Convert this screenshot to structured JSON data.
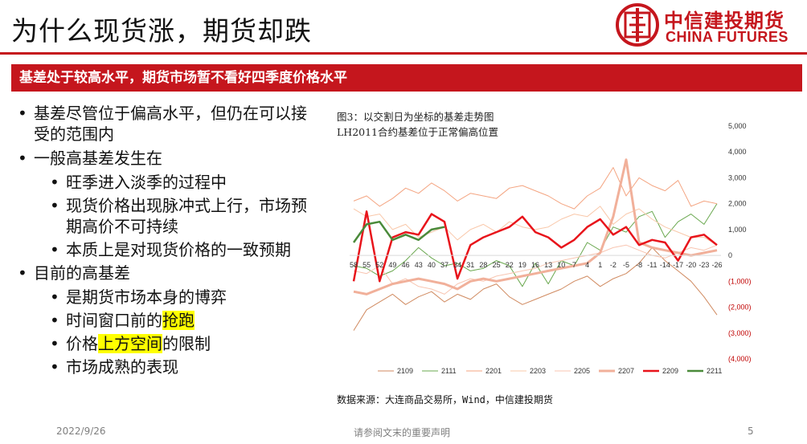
{
  "slide": {
    "title": "为什么现货涨，期货却跌",
    "banner": "基差处于较高水平，期货市场暂不看好四季度价格水平"
  },
  "logo": {
    "cn": "中信建投期货",
    "en": "CHINA FUTURES"
  },
  "bullets": {
    "b1": "基差尽管位于偏高水平，但仍在可以接受的范围内",
    "b2": "一般高基差发生在",
    "b2_1": "旺季进入淡季的过程中",
    "b2_2": "现货价格出现脉冲式上行，市场预期高价不可持续",
    "b2_3": "本质上是对现货价格的一致预期",
    "b3": "目前的高基差",
    "b3_1": "是期货市场本身的博弈",
    "b3_2_pre": "时间窗口前的",
    "b3_2_hl": "抢跑",
    "b3_3_pre": "价格",
    "b3_3_hl": "上方空间",
    "b3_3_post": "的限制",
    "b3_4": "市场成熟的表现"
  },
  "chart_caption": {
    "line1": "图3：以交割日为坐标的基差走势图",
    "line2": "LH2011合约基差位于正常偏高位置"
  },
  "source": "数据来源：大连商品交易所，Wind，中信建投期货",
  "footer": {
    "date": "2022/9/26",
    "note": "请参阅文末的重要声明",
    "page": "5"
  },
  "chart_data": {
    "type": "line",
    "x": [
      58,
      55,
      52,
      49,
      46,
      43,
      40,
      37,
      34,
      31,
      28,
      25,
      22,
      19,
      16,
      13,
      10,
      7,
      4,
      1,
      -2,
      -5,
      -8,
      -11,
      -14,
      -17,
      -20,
      -23,
      -26
    ],
    "y_ticks": [
      "5,000",
      "4,000",
      "3,000",
      "2,000",
      "1,000",
      "0",
      "(1,000)",
      "(2,000)",
      "(3,000)",
      "(4,000)"
    ],
    "y_tick_values": [
      5000,
      4000,
      3000,
      2000,
      1000,
      0,
      -1000,
      -2000,
      -3000,
      -4000
    ],
    "ylim": [
      -4000,
      5000
    ],
    "grid": false,
    "legend_position": "bottom",
    "series": [
      {
        "name": "2109",
        "color": "#d08a60",
        "width": 1,
        "values": [
          -2900,
          -2100,
          -1800,
          -1500,
          -1900,
          -1600,
          -1400,
          -1800,
          -1500,
          -1700,
          -1300,
          -1100,
          -1600,
          -1900,
          -1700,
          -1500,
          -1300,
          -1000,
          -800,
          -1200,
          -900,
          -700,
          -300,
          300,
          -200,
          -600,
          -1000,
          -1600,
          -2300
        ]
      },
      {
        "name": "2111",
        "color": "#6aa84f",
        "width": 1,
        "values": [
          -400,
          -500,
          -800,
          -600,
          -200,
          300,
          -100,
          -400,
          -300,
          -600,
          -500,
          -200,
          -400,
          -1200,
          -300,
          -1100,
          -200,
          -400,
          500,
          200,
          1100,
          900,
          1500,
          1700,
          700,
          1300,
          1600,
          1200,
          2000
        ]
      },
      {
        "name": "2201",
        "color": "#f4a582",
        "width": 1,
        "values": [
          2100,
          2300,
          1900,
          2200,
          2600,
          2400,
          2800,
          2500,
          2100,
          2400,
          2300,
          2200,
          2600,
          2700,
          2500,
          2300,
          2000,
          1800,
          2300,
          2600,
          3400,
          2300,
          3000,
          2700,
          2500,
          2900,
          1900,
          2100,
          2000
        ]
      },
      {
        "name": "2203",
        "color": "#f9c8aa",
        "width": 1,
        "values": [
          1800,
          1500,
          1600,
          1000,
          1200,
          700,
          900,
          1100,
          600,
          1000,
          1200,
          900,
          1300,
          1100,
          1000,
          1100,
          1400,
          1600,
          1500,
          1900,
          1200,
          1600,
          1800,
          1400,
          1100,
          900,
          700,
          700,
          400
        ]
      },
      {
        "name": "2205",
        "color": "#f8c5b1",
        "width": 1,
        "values": [
          -600,
          -700,
          -400,
          -1100,
          -900,
          -1200,
          -1300,
          -1500,
          -1100,
          -900,
          -1000,
          -800,
          -700,
          -600,
          -500,
          -300,
          -200,
          -100,
          0,
          100,
          300,
          400,
          200,
          0,
          -100,
          100,
          300,
          200,
          400
        ]
      },
      {
        "name": "2207",
        "color": "#f1b09a",
        "width": 3,
        "values": [
          -1400,
          -1500,
          -1300,
          -1100,
          -1000,
          -900,
          -1000,
          -1100,
          -1300,
          -1000,
          -900,
          -1000,
          -900,
          -800,
          -700,
          -600,
          -500,
          -400,
          -300,
          100,
          1500,
          3700,
          500,
          300,
          200,
          100,
          0,
          100,
          200
        ]
      },
      {
        "name": "2209",
        "color": "#e8141b",
        "width": 2.5,
        "values": [
          -1000,
          1700,
          -1000,
          700,
          900,
          800,
          1600,
          1300,
          -900,
          400,
          700,
          900,
          1100,
          1500,
          900,
          700,
          300,
          600,
          1100,
          1400,
          800,
          1100,
          400,
          600,
          500,
          -200,
          700,
          800,
          400
        ]
      },
      {
        "name": "2211",
        "color": "#4a8a3a",
        "width": 2.5,
        "values": [
          500,
          1200,
          1300,
          600,
          800,
          600,
          1000,
          1100,
          null,
          null,
          null,
          null,
          null,
          null,
          null,
          null,
          null,
          null,
          null,
          null,
          null,
          null,
          null,
          null,
          null,
          null,
          null,
          null,
          null
        ]
      }
    ]
  }
}
